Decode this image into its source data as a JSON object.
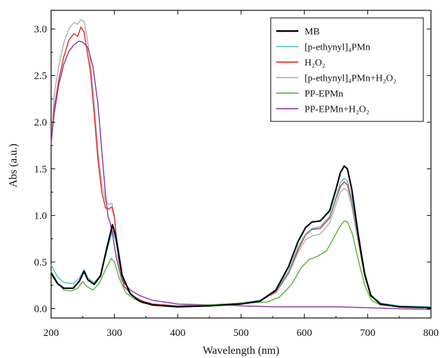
{
  "chart_data": {
    "type": "line",
    "title": "",
    "xlabel": "Wavelength (nm)",
    "ylabel": "Abs (a.u.)",
    "xlim": [
      200,
      800
    ],
    "ylim": [
      -0.1,
      3.2
    ],
    "xticks": [
      "200",
      "300",
      "400",
      "500",
      "600",
      "700",
      "800"
    ],
    "yticks": [
      "0.0",
      "0.5",
      "1.0",
      "1.5",
      "2.0",
      "2.5",
      "3.0"
    ],
    "grid": false,
    "legend_position": "top-right",
    "legend": [
      {
        "label": "MB",
        "color": "#000000"
      },
      {
        "label": "[p-ethynyl]₄PMn",
        "color": "#4fc3c8"
      },
      {
        "label": "H₂O₂",
        "color": "#e0302a"
      },
      {
        "label": "[p-ethynyl]₄PMn+H₂O₂",
        "color": "#b0b0b0"
      },
      {
        "label": "PP-EPMn",
        "color": "#5ab53c"
      },
      {
        "label": "PP-EPMn+H₂O₂",
        "color": "#8e3a9a"
      }
    ],
    "series": [
      {
        "name": "MB",
        "color": "#000000",
        "points": [
          [
            200,
            0.38
          ],
          [
            210,
            0.27
          ],
          [
            220,
            0.22
          ],
          [
            235,
            0.22
          ],
          [
            245,
            0.3
          ],
          [
            252,
            0.4
          ],
          [
            258,
            0.31
          ],
          [
            268,
            0.26
          ],
          [
            278,
            0.35
          ],
          [
            288,
            0.65
          ],
          [
            297,
            0.9
          ],
          [
            303,
            0.75
          ],
          [
            312,
            0.36
          ],
          [
            325,
            0.16
          ],
          [
            340,
            0.08
          ],
          [
            360,
            0.04
          ],
          [
            400,
            0.02
          ],
          [
            450,
            0.03
          ],
          [
            500,
            0.05
          ],
          [
            530,
            0.08
          ],
          [
            555,
            0.2
          ],
          [
            575,
            0.45
          ],
          [
            590,
            0.72
          ],
          [
            602,
            0.87
          ],
          [
            612,
            0.93
          ],
          [
            625,
            0.94
          ],
          [
            640,
            1.05
          ],
          [
            650,
            1.28
          ],
          [
            657,
            1.46
          ],
          [
            663,
            1.53
          ],
          [
            668,
            1.5
          ],
          [
            675,
            1.28
          ],
          [
            685,
            0.8
          ],
          [
            695,
            0.38
          ],
          [
            705,
            0.14
          ],
          [
            720,
            0.05
          ],
          [
            750,
            0.02
          ],
          [
            800,
            0.01
          ]
        ]
      },
      {
        "name": "[p-ethynyl]₄PMn",
        "color": "#4fc3c8",
        "points": [
          [
            200,
            0.47
          ],
          [
            210,
            0.34
          ],
          [
            220,
            0.28
          ],
          [
            235,
            0.27
          ],
          [
            245,
            0.33
          ],
          [
            252,
            0.42
          ],
          [
            258,
            0.33
          ],
          [
            268,
            0.28
          ],
          [
            278,
            0.36
          ],
          [
            288,
            0.62
          ],
          [
            297,
            0.84
          ],
          [
            303,
            0.7
          ],
          [
            312,
            0.34
          ],
          [
            325,
            0.16
          ],
          [
            340,
            0.08
          ],
          [
            360,
            0.04
          ],
          [
            400,
            0.03
          ],
          [
            450,
            0.04
          ],
          [
            500,
            0.06
          ],
          [
            530,
            0.09
          ],
          [
            555,
            0.19
          ],
          [
            575,
            0.4
          ],
          [
            590,
            0.66
          ],
          [
            602,
            0.8
          ],
          [
            612,
            0.86
          ],
          [
            625,
            0.88
          ],
          [
            640,
            0.99
          ],
          [
            650,
            1.2
          ],
          [
            657,
            1.35
          ],
          [
            663,
            1.4
          ],
          [
            668,
            1.37
          ],
          [
            675,
            1.18
          ],
          [
            685,
            0.76
          ],
          [
            695,
            0.38
          ],
          [
            705,
            0.15
          ],
          [
            720,
            0.06
          ],
          [
            750,
            0.03
          ],
          [
            800,
            0.02
          ]
        ]
      },
      {
        "name": "H₂O₂",
        "color": "#e0302a",
        "points": [
          [
            200,
            1.75
          ],
          [
            205,
            2.15
          ],
          [
            212,
            2.45
          ],
          [
            220,
            2.7
          ],
          [
            228,
            2.88
          ],
          [
            236,
            2.95
          ],
          [
            242,
            2.92
          ],
          [
            247,
            3.02
          ],
          [
            252,
            2.97
          ],
          [
            256,
            2.8
          ],
          [
            262,
            2.55
          ],
          [
            268,
            2.1
          ],
          [
            274,
            1.6
          ],
          [
            280,
            1.25
          ],
          [
            286,
            1.08
          ],
          [
            291,
            1.07
          ],
          [
            296,
            1.09
          ],
          [
            300,
            0.98
          ],
          [
            306,
            0.55
          ],
          [
            315,
            0.24
          ],
          [
            330,
            0.13
          ],
          [
            345,
            0.08
          ],
          [
            360,
            0.05
          ],
          [
            400,
            0.03
          ],
          [
            450,
            0.04
          ],
          [
            500,
            0.06
          ],
          [
            530,
            0.09
          ],
          [
            555,
            0.18
          ],
          [
            575,
            0.39
          ],
          [
            590,
            0.63
          ],
          [
            602,
            0.79
          ],
          [
            612,
            0.85
          ],
          [
            625,
            0.86
          ],
          [
            640,
            0.97
          ],
          [
            650,
            1.18
          ],
          [
            657,
            1.31
          ],
          [
            663,
            1.36
          ],
          [
            668,
            1.33
          ],
          [
            675,
            1.15
          ],
          [
            685,
            0.74
          ],
          [
            695,
            0.36
          ],
          [
            705,
            0.14
          ],
          [
            720,
            0.05
          ],
          [
            750,
            0.02
          ],
          [
            800,
            0.01
          ]
        ]
      },
      {
        "name": "[p-ethynyl]₄PMn+H₂O₂",
        "color": "#b0b0b0",
        "points": [
          [
            200,
            1.75
          ],
          [
            205,
            2.3
          ],
          [
            212,
            2.6
          ],
          [
            220,
            2.85
          ],
          [
            228,
            3.0
          ],
          [
            236,
            3.07
          ],
          [
            242,
            3.05
          ],
          [
            247,
            3.1
          ],
          [
            252,
            3.08
          ],
          [
            256,
            2.95
          ],
          [
            262,
            2.65
          ],
          [
            268,
            2.2
          ],
          [
            274,
            1.7
          ],
          [
            280,
            1.35
          ],
          [
            286,
            1.15
          ],
          [
            291,
            1.12
          ],
          [
            296,
            1.13
          ],
          [
            300,
            1.0
          ],
          [
            306,
            0.55
          ],
          [
            315,
            0.24
          ],
          [
            330,
            0.13
          ],
          [
            345,
            0.08
          ],
          [
            360,
            0.05
          ],
          [
            400,
            0.03
          ],
          [
            450,
            0.04
          ],
          [
            500,
            0.06
          ],
          [
            530,
            0.09
          ],
          [
            555,
            0.17
          ],
          [
            575,
            0.37
          ],
          [
            590,
            0.6
          ],
          [
            602,
            0.74
          ],
          [
            612,
            0.78
          ],
          [
            625,
            0.8
          ],
          [
            640,
            0.92
          ],
          [
            650,
            1.12
          ],
          [
            657,
            1.25
          ],
          [
            663,
            1.29
          ],
          [
            668,
            1.27
          ],
          [
            675,
            1.1
          ],
          [
            685,
            0.72
          ],
          [
            695,
            0.36
          ],
          [
            705,
            0.14
          ],
          [
            720,
            0.05
          ],
          [
            750,
            0.02
          ],
          [
            800,
            0.01
          ]
        ]
      },
      {
        "name": "PP-EPMn",
        "color": "#5ab53c",
        "points": [
          [
            200,
            0.4
          ],
          [
            210,
            0.28
          ],
          [
            220,
            0.2
          ],
          [
            232,
            0.19
          ],
          [
            242,
            0.22
          ],
          [
            250,
            0.29
          ],
          [
            256,
            0.24
          ],
          [
            266,
            0.2
          ],
          [
            276,
            0.27
          ],
          [
            286,
            0.42
          ],
          [
            295,
            0.54
          ],
          [
            300,
            0.5
          ],
          [
            308,
            0.32
          ],
          [
            318,
            0.17
          ],
          [
            330,
            0.11
          ],
          [
            345,
            0.06
          ],
          [
            365,
            0.04
          ],
          [
            400,
            0.03
          ],
          [
            450,
            0.04
          ],
          [
            500,
            0.06
          ],
          [
            540,
            0.07
          ],
          [
            560,
            0.12
          ],
          [
            580,
            0.26
          ],
          [
            595,
            0.44
          ],
          [
            608,
            0.53
          ],
          [
            620,
            0.56
          ],
          [
            635,
            0.62
          ],
          [
            648,
            0.78
          ],
          [
            656,
            0.88
          ],
          [
            663,
            0.94
          ],
          [
            668,
            0.93
          ],
          [
            676,
            0.8
          ],
          [
            686,
            0.5
          ],
          [
            696,
            0.24
          ],
          [
            706,
            0.09
          ],
          [
            720,
            0.04
          ],
          [
            750,
            0.02
          ],
          [
            800,
            0.01
          ]
        ]
      },
      {
        "name": "PP-EPMn+H₂O₂",
        "color": "#8e3a9a",
        "points": [
          [
            200,
            1.78
          ],
          [
            205,
            2.1
          ],
          [
            212,
            2.4
          ],
          [
            220,
            2.62
          ],
          [
            228,
            2.76
          ],
          [
            236,
            2.83
          ],
          [
            244,
            2.87
          ],
          [
            250,
            2.86
          ],
          [
            258,
            2.8
          ],
          [
            266,
            2.6
          ],
          [
            274,
            2.2
          ],
          [
            280,
            1.7
          ],
          [
            286,
            1.22
          ],
          [
            290,
            0.98
          ],
          [
            293,
            0.93
          ],
          [
            297,
            0.8
          ],
          [
            303,
            0.55
          ],
          [
            312,
            0.3
          ],
          [
            325,
            0.2
          ],
          [
            340,
            0.14
          ],
          [
            360,
            0.09
          ],
          [
            400,
            0.05
          ],
          [
            450,
            0.04
          ],
          [
            480,
            0.04
          ],
          [
            500,
            0.03
          ],
          [
            550,
            0.02
          ],
          [
            600,
            0.02
          ],
          [
            650,
            0.02
          ],
          [
            700,
            0.01
          ],
          [
            750,
            0.0
          ],
          [
            800,
            -0.01
          ]
        ]
      }
    ]
  }
}
